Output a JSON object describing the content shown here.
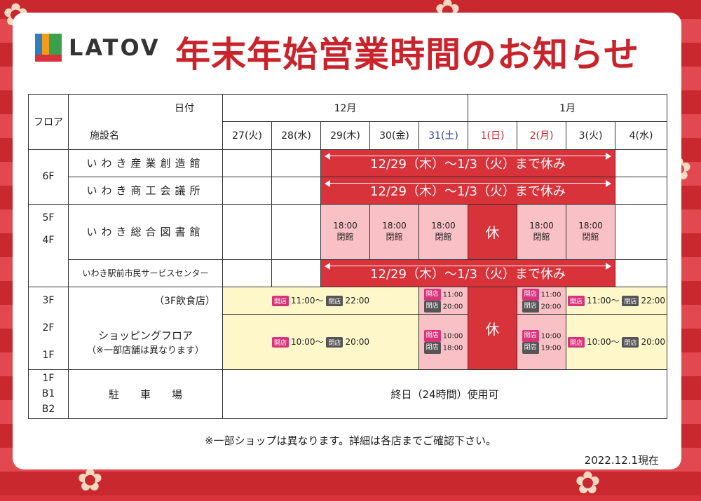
{
  "brand": "LATOV",
  "title": "年末年始営業時間のお知らせ",
  "header": {
    "floor": "フロア",
    "date": "日付",
    "facility": "施設名",
    "months": [
      "12月",
      "1月"
    ],
    "days": [
      "27(火)",
      "28(水)",
      "29(木)",
      "30(金)",
      "31(土)",
      "1(日)",
      "2(月)",
      "3(火)",
      "4(水)"
    ]
  },
  "floors": {
    "f6": "6F",
    "f5": "5F",
    "f4": "4F",
    "f3": "3F",
    "f2": "2F",
    "f1": "1F",
    "parking_floors": [
      "1F",
      "B1",
      "B2"
    ]
  },
  "facilities": {
    "sangyo": "いわき産業創造館",
    "shoko": "いわき商工会議所",
    "library": "いわき総合図書館",
    "service": "いわき駅前市民サービスセンター",
    "food": "（3F飲食店）",
    "shopping": "ショッピングフロア",
    "shopping_note": "（※一部店舗は異なります）",
    "parking": "駐　　車　　場"
  },
  "closed_range": "12/29（木）～1/3（火）まで休み",
  "library_hours": {
    "time": "18:00",
    "label": "閉館"
  },
  "closed_label": "休",
  "open_tag": "開店",
  "close_tag": "閉店",
  "food_hours": {
    "regular_open": "11:00",
    "regular_close": "22:00",
    "short_open": "11:00",
    "short_close": "20:00"
  },
  "shop_hours": {
    "regular_open": "10:00",
    "regular_close": "20:00",
    "dec31_open": "10:00",
    "dec31_close": "18:00",
    "jan2_open": "10:00",
    "jan2_close": "19:00"
  },
  "tilde": "～",
  "parking_text": "終日（24時間）使用可",
  "footnote": "※一部ショップは異なります。詳細は各店までご確認下さい。",
  "as_of": "2022.12.1現在",
  "colors": {
    "red": "#d8323a",
    "pink": "#f9c0c6",
    "cream": "#fdf7c9",
    "blue": "#2a3fa0"
  }
}
